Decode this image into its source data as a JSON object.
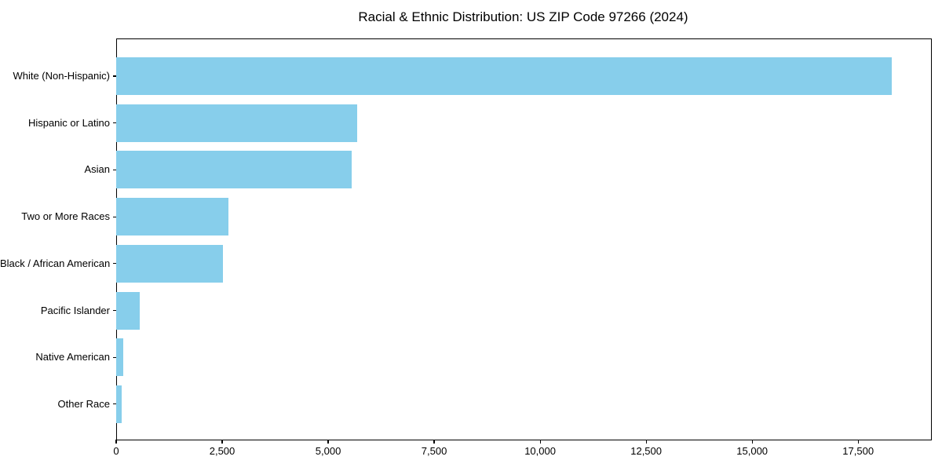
{
  "chart_data": {
    "type": "bar",
    "orientation": "horizontal",
    "title": "Racial & Ethnic Distribution: US ZIP Code 97266 (2024)",
    "categories": [
      "White (Non-Hispanic)",
      "Hispanic or Latino",
      "Asian",
      "Two or More Races",
      "Black / African American",
      "Pacific Islander",
      "Native American",
      "Other Race"
    ],
    "values": [
      18300,
      5690,
      5560,
      2650,
      2510,
      560,
      170,
      130
    ],
    "xlabel": "",
    "ylabel": "",
    "xlim": [
      0,
      19200
    ],
    "x_ticks": [
      0,
      2500,
      5000,
      7500,
      10000,
      12500,
      15000,
      17500
    ],
    "x_tick_labels": [
      "0",
      "2,500",
      "5,000",
      "7,500",
      "10,000",
      "12,500",
      "15,000",
      "17,500"
    ],
    "grid": false,
    "legend": "none",
    "colors": {
      "bar": "#87CEEB",
      "spine": "#000000",
      "text": "#000000",
      "background": "#FFFFFF"
    }
  }
}
